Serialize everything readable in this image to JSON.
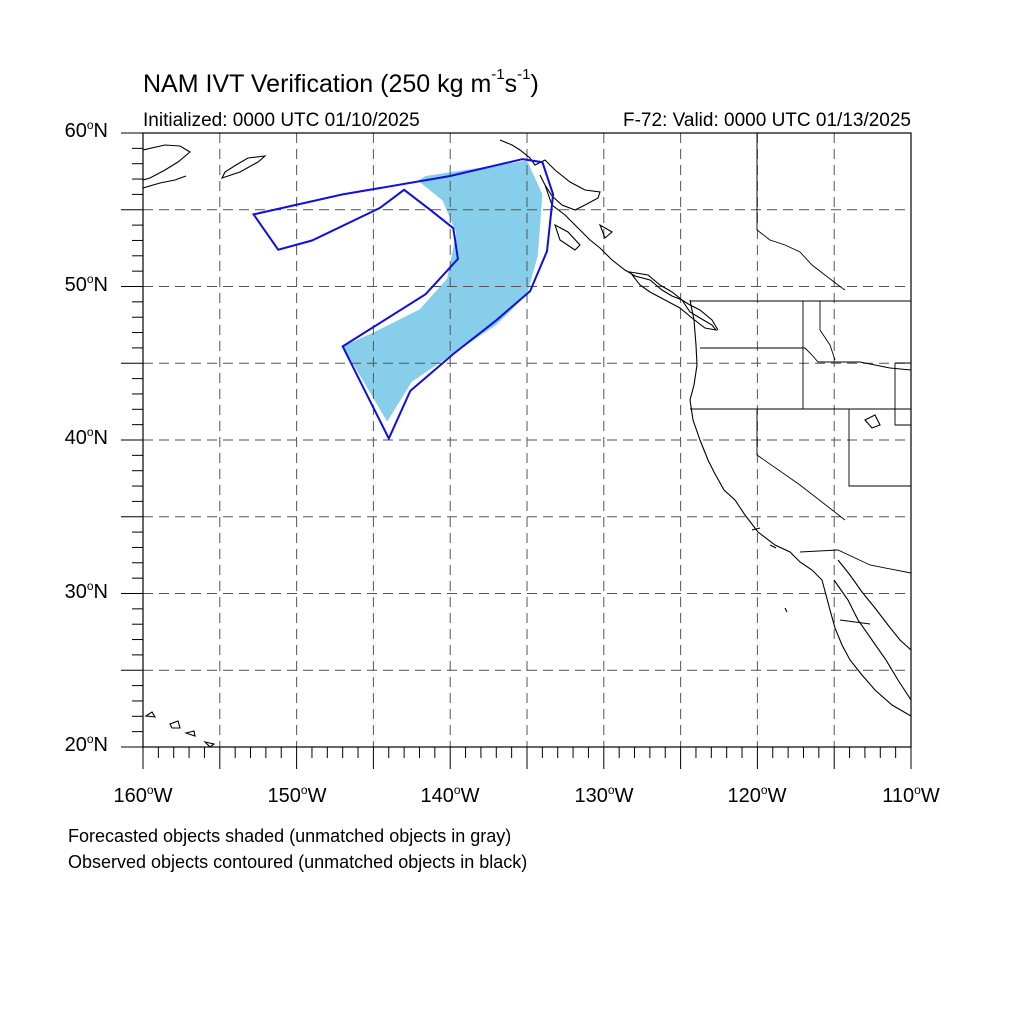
{
  "map": {
    "title_main": "NAM IVT Verification (250 kg m",
    "title_exp1": "-1",
    "title_mid": "s",
    "title_exp2": "-1",
    "title_end": ")",
    "initialized": "Initialized: 0000 UTC 01/10/2025",
    "valid": "F-72: Valid: 0000 UTC 01/13/2025",
    "lat_labels": [
      {
        "value": "60",
        "suffix": "N"
      },
      {
        "value": "50",
        "suffix": "N"
      },
      {
        "value": "40",
        "suffix": "N"
      },
      {
        "value": "30",
        "suffix": "N"
      },
      {
        "value": "20",
        "suffix": "N"
      }
    ],
    "lon_labels": [
      {
        "value": "160",
        "suffix": "W"
      },
      {
        "value": "150",
        "suffix": "W"
      },
      {
        "value": "140",
        "suffix": "W"
      },
      {
        "value": "130",
        "suffix": "W"
      },
      {
        "value": "120",
        "suffix": "W"
      },
      {
        "value": "110",
        "suffix": "W"
      }
    ],
    "degree_symbol": "o",
    "note_line1": "Forecasted objects shaded (unmatched objects in gray)",
    "note_line2": "Observed objects contoured (unmatched objects in black)",
    "extent": {
      "lon_min": -160,
      "lon_max": -110,
      "lat_min": 20,
      "lat_max": 60
    },
    "colors": {
      "forecast_fill": "#87ceeb",
      "observed_contour": "#1010dd",
      "coastline": "#000000",
      "grid": "#555555"
    },
    "forecast_object": [
      [
        -141.6,
        57.2
      ],
      [
        -135.0,
        58.2
      ],
      [
        -134.0,
        56.0
      ],
      [
        -134.3,
        52.0
      ],
      [
        -135.0,
        49.5
      ],
      [
        -137.0,
        47.5
      ],
      [
        -140.0,
        45.5
      ],
      [
        -142.5,
        43.8
      ],
      [
        -144.1,
        41.2
      ],
      [
        -147.0,
        46.1
      ],
      [
        -145.0,
        47.0
      ],
      [
        -142.0,
        48.5
      ],
      [
        -140.2,
        50.5
      ],
      [
        -139.6,
        53.5
      ],
      [
        -140.5,
        55.6
      ],
      [
        -142.1,
        56.9
      ]
    ],
    "observed_object": [
      [
        -152.8,
        54.7
      ],
      [
        -147.0,
        56.0
      ],
      [
        -140.0,
        57.2
      ],
      [
        -135.3,
        58.3
      ],
      [
        -134.0,
        58.1
      ],
      [
        -133.3,
        56.0
      ],
      [
        -133.7,
        52.3
      ],
      [
        -134.8,
        49.7
      ],
      [
        -137.0,
        47.8
      ],
      [
        -139.8,
        45.6
      ],
      [
        -142.6,
        43.2
      ],
      [
        -144.0,
        40.1
      ],
      [
        -147.0,
        46.1
      ],
      [
        -141.6,
        49.5
      ],
      [
        -139.5,
        51.8
      ],
      [
        -139.8,
        53.8
      ],
      [
        -141.3,
        55.0
      ],
      [
        -143.0,
        56.3
      ],
      [
        -144.6,
        55.1
      ],
      [
        -149.0,
        53.0
      ],
      [
        -151.2,
        52.4
      ]
    ]
  }
}
